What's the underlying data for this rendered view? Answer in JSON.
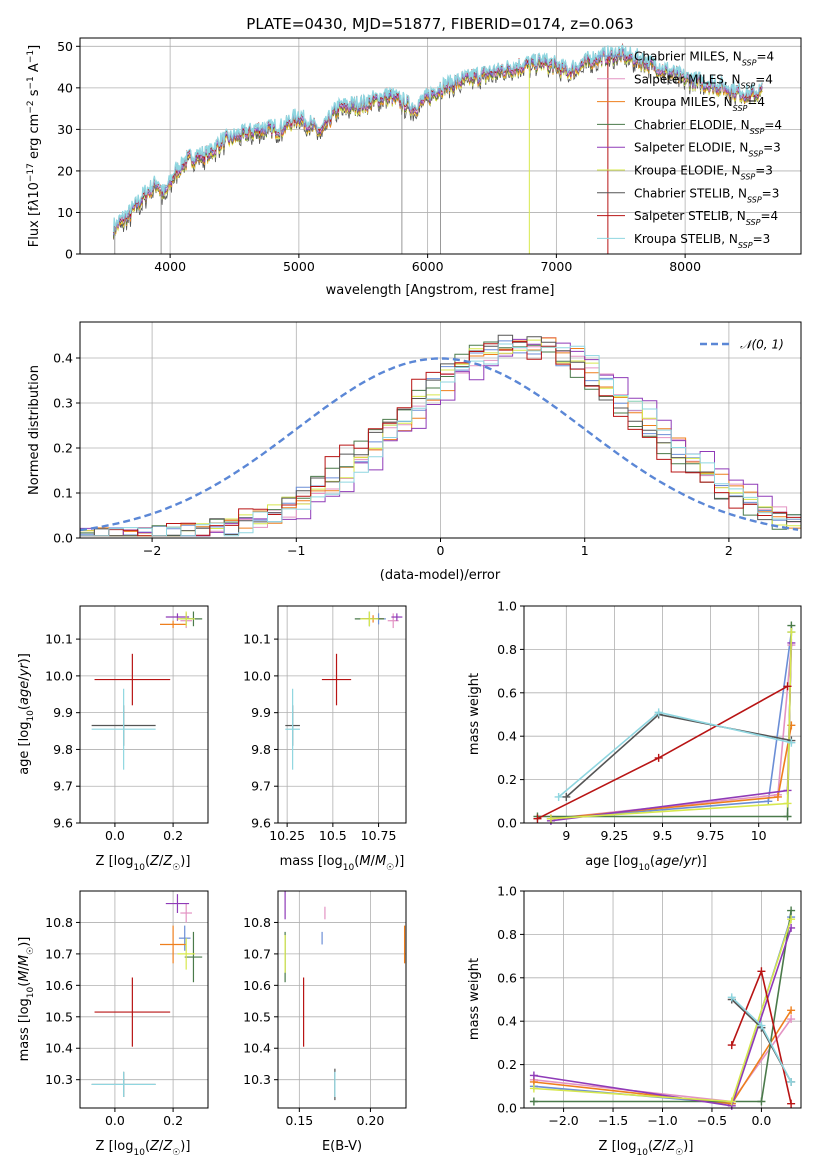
{
  "colors": {
    "chabrier_miles": "#6b8ed6",
    "salpeter_miles": "#e393c3",
    "kroupa_miles": "#ee7f1d",
    "chabrier_elodie": "#4a7a4a",
    "salpeter_elodie": "#8f3bb8",
    "kroupa_elodie": "#d7e84d",
    "chabrier_stelib": "#555555",
    "salpeter_stelib": "#b81414",
    "kroupa_stelib": "#8fd6e0",
    "normal_curve": "#5b87d6"
  },
  "chart_data": [
    {
      "id": "spectrum",
      "type": "line",
      "title": "PLATE=0430, MJD=51877, FIBERID=0174, z=0.063",
      "xlabel": "wavelength [Angstrom, rest frame]",
      "ylabel": "Flux [fλ10⁻¹⁷ erg cm⁻² s⁻¹ A⁻¹]",
      "xlim": [
        3300,
        8900
      ],
      "ylim": [
        0,
        52
      ],
      "xticks": [
        4000,
        5000,
        6000,
        7000,
        8000
      ],
      "yticks": [
        0,
        10,
        20,
        30,
        40,
        50
      ],
      "grid": true,
      "legend_position": "bottom-right",
      "continuum_points": [
        [
          3560,
          6
        ],
        [
          3700,
          10
        ],
        [
          3800,
          14
        ],
        [
          3900,
          17
        ],
        [
          3950,
          14
        ],
        [
          4050,
          20
        ],
        [
          4150,
          23
        ],
        [
          4300,
          24
        ],
        [
          4400,
          27
        ],
        [
          4500,
          28
        ],
        [
          4700,
          30
        ],
        [
          4860,
          30
        ],
        [
          5000,
          33
        ],
        [
          5170,
          29
        ],
        [
          5300,
          35
        ],
        [
          5500,
          36
        ],
        [
          5700,
          38
        ],
        [
          5900,
          35
        ],
        [
          6100,
          40
        ],
        [
          6300,
          42
        ],
        [
          6563,
          44
        ],
        [
          6700,
          45
        ],
        [
          6900,
          46
        ],
        [
          7100,
          44
        ],
        [
          7300,
          47
        ],
        [
          7500,
          48
        ],
        [
          7700,
          46
        ],
        [
          8000,
          42
        ],
        [
          8300,
          40
        ],
        [
          8500,
          38
        ],
        [
          8600,
          39
        ]
      ],
      "spikes": [
        3570,
        3930,
        5800,
        6100,
        6790,
        7400
      ],
      "series": [
        {
          "name": "Chabrier MILES, N_SSP=4",
          "color_key": "chabrier_miles"
        },
        {
          "name": "Salpeter MILES, N_SSP=4",
          "color_key": "salpeter_miles"
        },
        {
          "name": "Kroupa MILES, N_SSP=4",
          "color_key": "kroupa_miles"
        },
        {
          "name": "Chabrier ELODIE, N_SSP=4",
          "color_key": "chabrier_elodie"
        },
        {
          "name": "Salpeter ELODIE, N_SSP=3",
          "color_key": "salpeter_elodie"
        },
        {
          "name": "Kroupa ELODIE, N_SSP=3",
          "color_key": "kroupa_elodie"
        },
        {
          "name": "Chabrier STELIB, N_SSP=3",
          "color_key": "chabrier_stelib"
        },
        {
          "name": "Salpeter STELIB, N_SSP=4",
          "color_key": "salpeter_stelib"
        },
        {
          "name": "Kroupa STELIB, N_SSP=3",
          "color_key": "kroupa_stelib"
        }
      ]
    },
    {
      "id": "residuals",
      "type": "line",
      "xlabel": "(data-model)/error",
      "ylabel": "Normed distribution",
      "xlim": [
        -2.5,
        2.5
      ],
      "ylim": [
        0,
        0.48
      ],
      "xticks": [
        -2,
        -1,
        0,
        1,
        2
      ],
      "yticks": [
        0.0,
        0.1,
        0.2,
        0.3,
        0.4
      ],
      "grid": true,
      "legend": "𝒩(0, 1)",
      "legend_position": "top-right",
      "histogram_peak_centers": [
        0.55,
        0.6,
        0.62,
        0.5,
        0.7,
        0.58,
        0.52,
        0.45,
        0.65
      ],
      "histogram_width": 0.85
    },
    {
      "id": "age_vs_Z",
      "type": "scatter",
      "xlabel": "Z [log₁₀(Z/Z☉)]",
      "ylabel": "age  [log₁₀(age/yr)]",
      "xlim": [
        -0.12,
        0.32
      ],
      "ylim": [
        9.6,
        10.19
      ],
      "xticks": [
        0.0,
        0.2
      ],
      "yticks": [
        9.6,
        9.7,
        9.8,
        9.9,
        10.0,
        10.1
      ],
      "points": [
        {
          "color_key": "chabrier_miles",
          "x": 0.245,
          "y": 10.155,
          "xerr": 0.02,
          "yerr": 0.015
        },
        {
          "color_key": "salpeter_miles",
          "x": 0.245,
          "y": 10.15,
          "xerr": 0.02,
          "yerr": 0.02
        },
        {
          "color_key": "kroupa_miles",
          "x": 0.2,
          "y": 10.14,
          "xerr": 0.045,
          "yerr": 0.01
        },
        {
          "color_key": "chabrier_elodie",
          "x": 0.27,
          "y": 10.155,
          "xerr": 0.03,
          "yerr": 0.02
        },
        {
          "color_key": "salpeter_elodie",
          "x": 0.215,
          "y": 10.16,
          "xerr": 0.04,
          "yerr": 0.01
        },
        {
          "color_key": "kroupa_elodie",
          "x": 0.245,
          "y": 10.155,
          "xerr": 0.03,
          "yerr": 0.02
        },
        {
          "color_key": "chabrier_stelib",
          "x": 0.03,
          "y": 9.865,
          "xerr": 0.11,
          "yerr": 0.055
        },
        {
          "color_key": "salpeter_stelib",
          "x": 0.06,
          "y": 9.99,
          "xerr": 0.13,
          "yerr": 0.07
        },
        {
          "color_key": "kroupa_stelib",
          "x": 0.03,
          "y": 9.855,
          "xerr": 0.11,
          "yerr": 0.11
        }
      ]
    },
    {
      "id": "age_vs_mass",
      "type": "scatter",
      "xlabel": "mass [log₁₀(M/M☉)]",
      "ylabel": "",
      "xlim": [
        10.2,
        10.9
      ],
      "ylim": [
        9.6,
        10.19
      ],
      "xticks": [
        10.25,
        10.5,
        10.75
      ],
      "yticks": [
        9.6,
        9.7,
        9.8,
        9.9,
        10.0,
        10.1
      ],
      "points": [
        {
          "color_key": "chabrier_miles",
          "x": 10.75,
          "y": 10.155,
          "xerr": 0.04,
          "yerr": 0.015
        },
        {
          "color_key": "salpeter_miles",
          "x": 10.83,
          "y": 10.15,
          "xerr": 0.03,
          "yerr": 0.02
        },
        {
          "color_key": "kroupa_miles",
          "x": 10.72,
          "y": 10.155,
          "xerr": 0.06,
          "yerr": 0.01
        },
        {
          "color_key": "chabrier_elodie",
          "x": 10.7,
          "y": 10.155,
          "xerr": 0.08,
          "yerr": 0.02
        },
        {
          "color_key": "salpeter_elodie",
          "x": 10.85,
          "y": 10.16,
          "xerr": 0.03,
          "yerr": 0.01
        },
        {
          "color_key": "kroupa_elodie",
          "x": 10.7,
          "y": 10.155,
          "xerr": 0.05,
          "yerr": 0.02
        },
        {
          "color_key": "chabrier_stelib",
          "x": 10.28,
          "y": 9.865,
          "xerr": 0.04,
          "yerr": 0.055
        },
        {
          "color_key": "salpeter_stelib",
          "x": 10.52,
          "y": 9.99,
          "xerr": 0.08,
          "yerr": 0.07
        },
        {
          "color_key": "kroupa_stelib",
          "x": 10.28,
          "y": 9.855,
          "xerr": 0.04,
          "yerr": 0.11
        }
      ]
    },
    {
      "id": "weight_vs_age",
      "type": "line",
      "xlabel": "age  [log₁₀(age/yr)]",
      "ylabel": "mass weight",
      "xlim": [
        8.78,
        10.22
      ],
      "ylim": [
        0,
        1
      ],
      "xticks": [
        9.0,
        9.25,
        9.5,
        9.75,
        10.0
      ],
      "yticks": [
        0.0,
        0.2,
        0.4,
        0.6,
        0.8,
        1.0
      ],
      "series": [
        {
          "color_key": "chabrier_miles",
          "x": [
            8.92,
            10.05,
            10.17
          ],
          "y": [
            0.02,
            0.1,
            0.88
          ]
        },
        {
          "color_key": "salpeter_miles",
          "x": [
            8.92,
            10.1,
            10.17
          ],
          "y": [
            0.02,
            0.13,
            0.82
          ]
        },
        {
          "color_key": "kroupa_miles",
          "x": [
            8.92,
            10.1,
            10.17
          ],
          "y": [
            0.02,
            0.12,
            0.45
          ]
        },
        {
          "color_key": "chabrier_elodie",
          "x": [
            8.85,
            10.15,
            10.17
          ],
          "y": [
            0.03,
            0.03,
            0.91
          ]
        },
        {
          "color_key": "salpeter_elodie",
          "x": [
            8.92,
            10.15,
            10.17
          ],
          "y": [
            0.01,
            0.15,
            0.83
          ]
        },
        {
          "color_key": "kroupa_elodie",
          "x": [
            8.92,
            10.15,
            10.17
          ],
          "y": [
            0.02,
            0.09,
            0.88
          ]
        },
        {
          "color_key": "chabrier_stelib",
          "x": [
            9.0,
            9.48,
            10.17
          ],
          "y": [
            0.12,
            0.5,
            0.38
          ]
        },
        {
          "color_key": "salpeter_stelib",
          "x": [
            8.85,
            9.48,
            10.15
          ],
          "y": [
            0.02,
            0.3,
            0.63
          ]
        },
        {
          "color_key": "kroupa_stelib",
          "x": [
            8.96,
            9.48,
            10.17
          ],
          "y": [
            0.12,
            0.51,
            0.37
          ]
        }
      ]
    },
    {
      "id": "mass_vs_Z",
      "type": "scatter",
      "xlabel": "Z [log₁₀(Z/Z☉)]",
      "ylabel": "mass [log₁₀(M/M☉)]",
      "xlim": [
        -0.12,
        0.32
      ],
      "ylim": [
        10.21,
        10.9
      ],
      "xticks": [
        0.0,
        0.2
      ],
      "yticks": [
        10.3,
        10.4,
        10.5,
        10.6,
        10.7,
        10.8
      ],
      "points": [
        {
          "color_key": "chabrier_miles",
          "x": 0.24,
          "y": 10.75,
          "xerr": 0.02,
          "yerr": 0.04
        },
        {
          "color_key": "salpeter_miles",
          "x": 0.245,
          "y": 10.83,
          "xerr": 0.02,
          "yerr": 0.03
        },
        {
          "color_key": "kroupa_miles",
          "x": 0.2,
          "y": 10.73,
          "xerr": 0.045,
          "yerr": 0.06
        },
        {
          "color_key": "chabrier_elodie",
          "x": 0.27,
          "y": 10.69,
          "xerr": 0.03,
          "yerr": 0.08
        },
        {
          "color_key": "salpeter_elodie",
          "x": 0.215,
          "y": 10.86,
          "xerr": 0.04,
          "yerr": 0.03
        },
        {
          "color_key": "kroupa_elodie",
          "x": 0.245,
          "y": 10.7,
          "xerr": 0.03,
          "yerr": 0.05
        },
        {
          "color_key": "chabrier_stelib",
          "x": 0.03,
          "y": 10.285,
          "xerr": 0.11,
          "yerr": 0.04
        },
        {
          "color_key": "salpeter_stelib",
          "x": 0.06,
          "y": 10.515,
          "xerr": 0.13,
          "yerr": 0.11
        },
        {
          "color_key": "kroupa_stelib",
          "x": 0.03,
          "y": 10.285,
          "xerr": 0.11,
          "yerr": 0.04
        }
      ]
    },
    {
      "id": "mass_vs_ebv",
      "type": "scatter",
      "xlabel": "E(B-V)",
      "ylabel": "",
      "xlim": [
        0.135,
        0.225
      ],
      "ylim": [
        10.21,
        10.9
      ],
      "xticks": [
        0.15,
        0.2
      ],
      "xticklabels": [
        "0.15",
        "0.20"
      ],
      "yticks": [
        10.3,
        10.4,
        10.5,
        10.6,
        10.7,
        10.8
      ],
      "points": [
        {
          "color_key": "chabrier_miles",
          "x": 0.166,
          "y": 10.75,
          "xerr": 0.0,
          "yerr": 0.02
        },
        {
          "color_key": "salpeter_miles",
          "x": 0.168,
          "y": 10.83,
          "xerr": 0.0,
          "yerr": 0.02
        },
        {
          "color_key": "kroupa_miles",
          "x": 0.224,
          "y": 10.73,
          "xerr": 0.0,
          "yerr": 0.06
        },
        {
          "color_key": "chabrier_elodie",
          "x": 0.14,
          "y": 10.69,
          "xerr": 0.0,
          "yerr": 0.08
        },
        {
          "color_key": "salpeter_elodie",
          "x": 0.14,
          "y": 10.86,
          "xerr": 0.0,
          "yerr": 0.05
        },
        {
          "color_key": "kroupa_elodie",
          "x": 0.14,
          "y": 10.7,
          "xerr": 0.0,
          "yerr": 0.06
        },
        {
          "color_key": "chabrier_stelib",
          "x": 0.175,
          "y": 10.285,
          "xerr": 0.0,
          "yerr": 0.05
        },
        {
          "color_key": "salpeter_stelib",
          "x": 0.153,
          "y": 10.515,
          "xerr": 0.0,
          "yerr": 0.11
        },
        {
          "color_key": "kroupa_stelib",
          "x": 0.175,
          "y": 10.285,
          "xerr": 0.0,
          "yerr": 0.04
        }
      ]
    },
    {
      "id": "weight_vs_Z",
      "type": "line",
      "xlabel": "Z [log₁₀(Z/Z☉)]",
      "ylabel": "mass weight",
      "xlim": [
        -2.4,
        0.4
      ],
      "ylim": [
        0,
        1
      ],
      "xticks": [
        -2.0,
        -1.5,
        -1.0,
        -0.5,
        0.0
      ],
      "yticks": [
        0.0,
        0.2,
        0.4,
        0.6,
        0.8,
        1.0
      ],
      "series": [
        {
          "color_key": "chabrier_miles",
          "x": [
            -2.3,
            -0.3,
            0.3
          ],
          "y": [
            0.1,
            0.02,
            0.88
          ]
        },
        {
          "color_key": "salpeter_miles",
          "x": [
            -2.3,
            -0.3,
            0.3
          ],
          "y": [
            0.13,
            0.03,
            0.41
          ]
        },
        {
          "color_key": "kroupa_miles",
          "x": [
            -2.3,
            -0.3,
            0.3
          ],
          "y": [
            0.12,
            0.02,
            0.45
          ]
        },
        {
          "color_key": "chabrier_elodie",
          "x": [
            -2.3,
            0.0,
            0.3
          ],
          "y": [
            0.03,
            0.03,
            0.91
          ]
        },
        {
          "color_key": "salpeter_elodie",
          "x": [
            -2.3,
            -0.3,
            0.3
          ],
          "y": [
            0.15,
            0.01,
            0.83
          ]
        },
        {
          "color_key": "kroupa_elodie",
          "x": [
            -2.3,
            -0.3,
            0.3
          ],
          "y": [
            0.09,
            0.03,
            0.87
          ]
        },
        {
          "color_key": "chabrier_stelib",
          "x": [
            -0.3,
            0.0,
            0.3
          ],
          "y": [
            0.5,
            0.37,
            0.12
          ]
        },
        {
          "color_key": "salpeter_stelib",
          "x": [
            -0.3,
            0.0,
            0.3
          ],
          "y": [
            0.29,
            0.63,
            0.02
          ]
        },
        {
          "color_key": "kroupa_stelib",
          "x": [
            -0.3,
            0.0,
            0.3
          ],
          "y": [
            0.51,
            0.38,
            0.12
          ]
        }
      ]
    }
  ]
}
